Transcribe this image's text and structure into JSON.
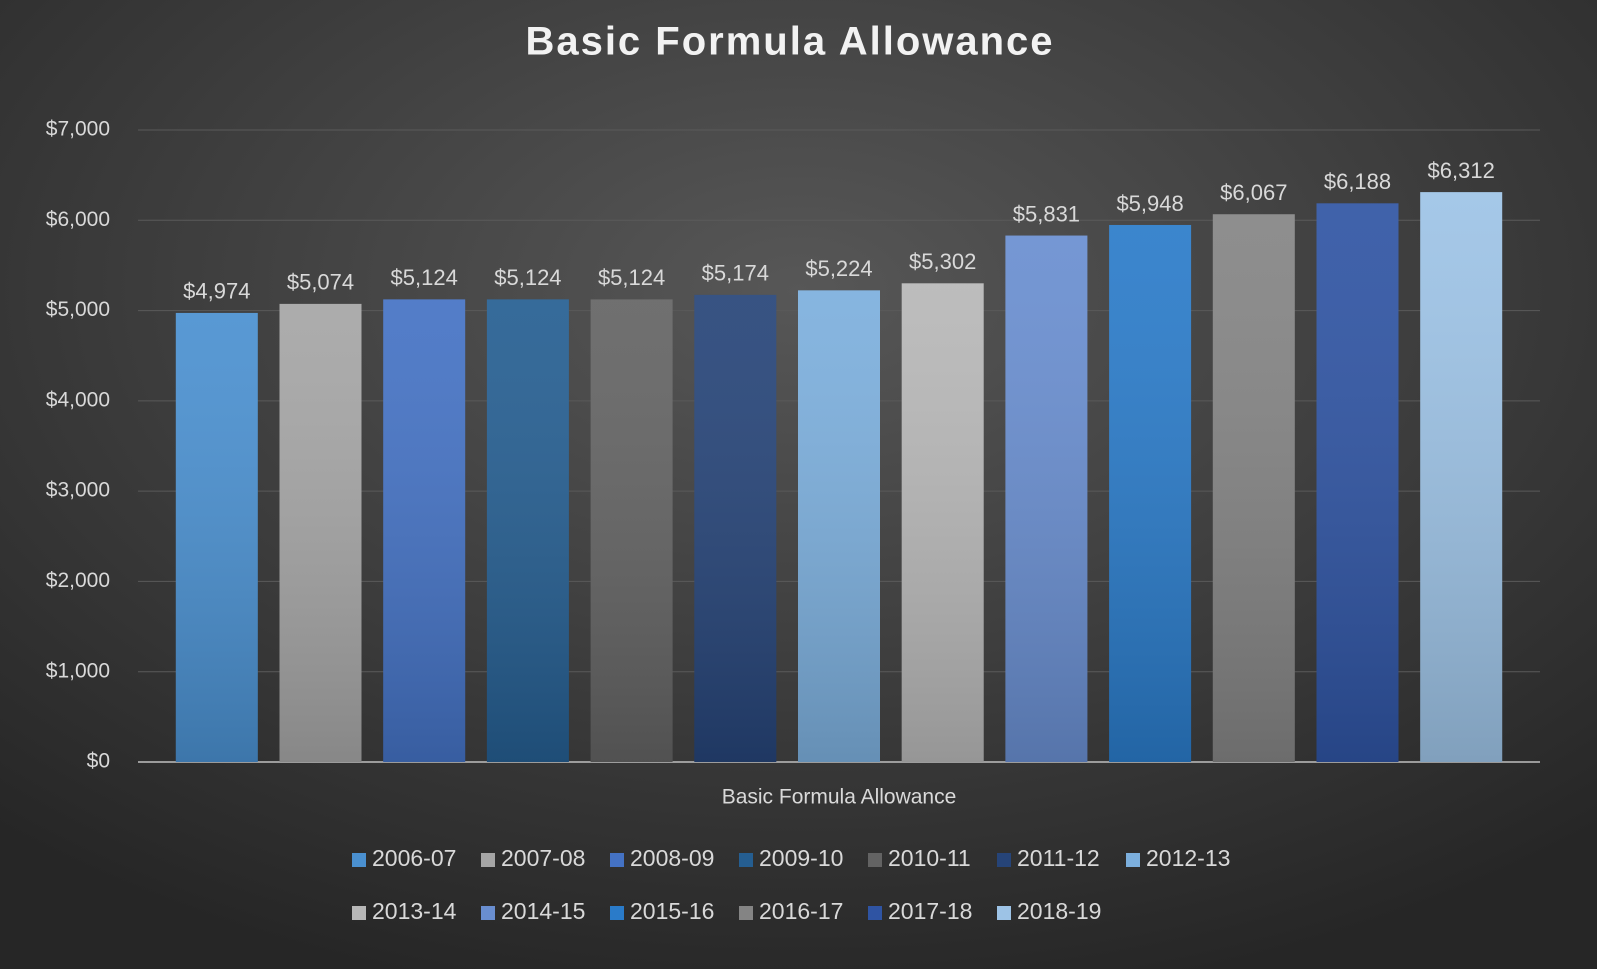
{
  "chart_data": {
    "type": "bar",
    "title": "Basic Formula Allowance",
    "categories": [
      "Basic Formula Allowance"
    ],
    "series": [
      {
        "name": "2006-07",
        "color": "#4a90d0",
        "values": [
          4974
        ],
        "value_labels": [
          "$4,974"
        ]
      },
      {
        "name": "2007-08",
        "color": "#a5a5a5",
        "values": [
          5074
        ],
        "value_labels": [
          "$5,074"
        ]
      },
      {
        "name": "2008-09",
        "color": "#4472c4",
        "values": [
          5124
        ],
        "value_labels": [
          "$5,124"
        ]
      },
      {
        "name": "2009-10",
        "color": "#255e91",
        "values": [
          5124
        ],
        "value_labels": [
          "$5,124"
        ]
      },
      {
        "name": "2010-11",
        "color": "#636363",
        "values": [
          5124
        ],
        "value_labels": [
          "$5,124"
        ]
      },
      {
        "name": "2011-12",
        "color": "#264478",
        "values": [
          5174
        ],
        "value_labels": [
          "$5,174"
        ]
      },
      {
        "name": "2012-13",
        "color": "#7cafdd",
        "values": [
          5224
        ],
        "value_labels": [
          "$5,224"
        ]
      },
      {
        "name": "2013-14",
        "color": "#b7b7b7",
        "values": [
          5302
        ],
        "value_labels": [
          "$5,302"
        ]
      },
      {
        "name": "2014-15",
        "color": "#698ed0",
        "values": [
          5831
        ],
        "value_labels": [
          "$5,831"
        ]
      },
      {
        "name": "2015-16",
        "color": "#2a7bc9",
        "values": [
          5948
        ],
        "value_labels": [
          "$5,948"
        ]
      },
      {
        "name": "2016-17",
        "color": "#848484",
        "values": [
          6067
        ],
        "value_labels": [
          "$6,067"
        ]
      },
      {
        "name": "2017-18",
        "color": "#2f54a3",
        "values": [
          6188
        ],
        "value_labels": [
          "$6,188"
        ]
      },
      {
        "name": "2018-19",
        "color": "#9dc3e6",
        "values": [
          6312
        ],
        "value_labels": [
          "$6,312"
        ]
      }
    ],
    "ylim": [
      0,
      7000
    ],
    "yticks": [
      {
        "value": 0,
        "label": "$0"
      },
      {
        "value": 1000,
        "label": "$1,000"
      },
      {
        "value": 2000,
        "label": "$2,000"
      },
      {
        "value": 3000,
        "label": "$3,000"
      },
      {
        "value": 4000,
        "label": "$4,000"
      },
      {
        "value": 5000,
        "label": "$5,000"
      },
      {
        "value": 6000,
        "label": "$6,000"
      },
      {
        "value": 7000,
        "label": "$7,000"
      }
    ],
    "grid": true
  }
}
